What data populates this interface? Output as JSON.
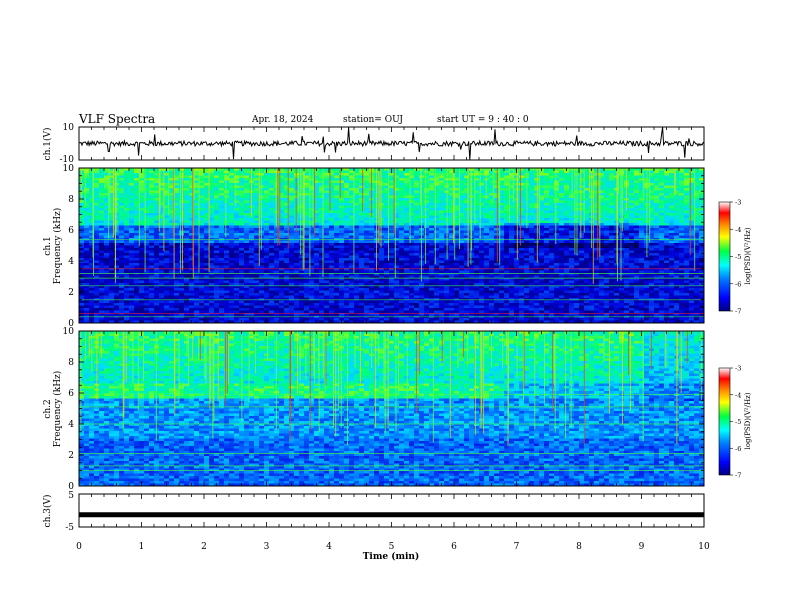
{
  "header": {
    "title": "VLF Spectra",
    "date": "Apr. 18, 2024",
    "station": "station= OUJ",
    "start": "start  UT  =   9  : 40 : 0"
  },
  "chart_data": [
    {
      "type": "line",
      "panel": "ch1-waveform",
      "ylabel": "ch.1(V)",
      "ylim": [
        -10,
        10
      ],
      "ytick_labels": [
        "10",
        "-10"
      ],
      "xlim": [
        0,
        10
      ],
      "baseline": 0,
      "description_values": "noisy signal centered near 0 V with spikes"
    },
    {
      "type": "heatmap",
      "panel": "ch1-spectrogram",
      "ylabel": "ch.1",
      "ylabel2": "Frequency (kHz)",
      "ylim": [
        0,
        10
      ],
      "ytick_labels": [
        "0",
        "2",
        "4",
        "6",
        "8",
        "10"
      ],
      "xlim": [
        0,
        10
      ],
      "colorbar": {
        "label": "log(PSD)(V²/Hz)",
        "range": [
          -7,
          -3
        ],
        "tick_labels": [
          "-3",
          "-4",
          "-5",
          "-6",
          "-7"
        ]
      }
    },
    {
      "type": "heatmap",
      "panel": "ch2-spectrogram",
      "ylabel": "ch.2",
      "ylabel2": "Frequency (kHz)",
      "ylim": [
        0,
        10
      ],
      "ytick_labels": [
        "0",
        "2",
        "4",
        "6",
        "8",
        "10"
      ],
      "xlim": [
        0,
        10
      ],
      "colorbar": {
        "label": "log(PSD)(V²/Hz)",
        "range": [
          -7,
          -3
        ],
        "tick_labels": [
          "-3",
          "-4",
          "-5",
          "-6",
          "-7"
        ]
      }
    },
    {
      "type": "line",
      "panel": "ch3-waveform",
      "ylabel": "ch.3(V)",
      "ylim": [
        -5,
        5
      ],
      "ytick_labels": [
        "5",
        "-5"
      ],
      "xlim": [
        0,
        10
      ],
      "level": -1.3
    }
  ],
  "xaxis": {
    "label": "Time (min)",
    "ticks": [
      0,
      1,
      2,
      3,
      4,
      5,
      6,
      7,
      8,
      9,
      10
    ],
    "tick_labels": [
      "0",
      "1",
      "2",
      "3",
      "4",
      "5",
      "6",
      "7",
      "8",
      "9",
      "10"
    ]
  }
}
